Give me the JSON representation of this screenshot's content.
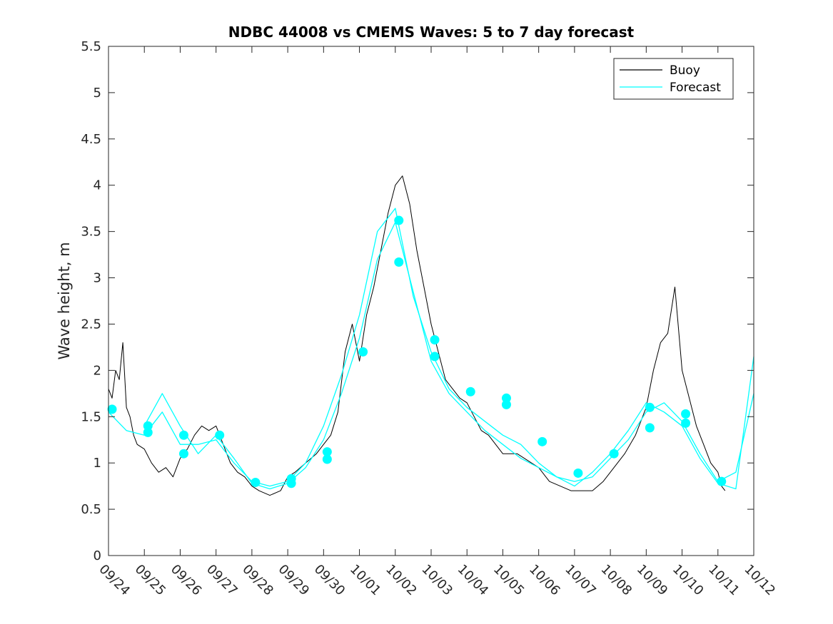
{
  "chart_data": {
    "type": "line",
    "title": "NDBC 44008 vs CMEMS Waves: 5 to 7 day forecast",
    "xlabel": "",
    "ylabel": "Wave height, m",
    "x_unit": "days since 09/24 00:00",
    "xlim": [
      0,
      18
    ],
    "ylim": [
      0,
      5.5
    ],
    "yticks": [
      0,
      0.5,
      1,
      1.5,
      2,
      2.5,
      3,
      3.5,
      4,
      4.5,
      5,
      5.5
    ],
    "ytick_labels": [
      "0",
      "0.5",
      "1",
      "1.5",
      "2",
      "2.5",
      "3",
      "3.5",
      "4",
      "4.5",
      "5",
      "5.5"
    ],
    "xticks": [
      0,
      1,
      2,
      3,
      4,
      5,
      6,
      7,
      8,
      9,
      10,
      11,
      12,
      13,
      14,
      15,
      16,
      17,
      18
    ],
    "xtick_labels": [
      "09/24",
      "09/25",
      "09/26",
      "09/27",
      "09/28",
      "09/29",
      "09/30",
      "10/01",
      "10/02",
      "10/03",
      "10/04",
      "10/05",
      "10/06",
      "10/07",
      "10/08",
      "10/09",
      "10/10",
      "10/11",
      "10/12"
    ],
    "grid": false,
    "legend": {
      "location": "top-right",
      "entries": [
        "Buoy",
        "Forecast"
      ]
    },
    "colors": {
      "buoy": "#000000",
      "forecast": "#00ffff"
    },
    "series": [
      {
        "name": "Buoy",
        "x": [
          0,
          0.1,
          0.2,
          0.3,
          0.4,
          0.5,
          0.6,
          0.7,
          0.8,
          1.0,
          1.2,
          1.4,
          1.6,
          1.8,
          2.0,
          2.2,
          2.4,
          2.6,
          2.8,
          3.0,
          3.2,
          3.4,
          3.6,
          3.8,
          4.0,
          4.2,
          4.5,
          4.8,
          5.0,
          5.2,
          5.5,
          5.8,
          6.0,
          6.2,
          6.4,
          6.6,
          6.8,
          7.0,
          7.2,
          7.4,
          7.6,
          7.8,
          8.0,
          8.2,
          8.4,
          8.6,
          8.8,
          9.0,
          9.2,
          9.4,
          9.6,
          9.8,
          10.0,
          10.2,
          10.4,
          10.6,
          10.8,
          11.0,
          11.2,
          11.4,
          11.6,
          11.8,
          12.0,
          12.3,
          12.6,
          12.9,
          13.2,
          13.5,
          13.8,
          14.1,
          14.4,
          14.7,
          15.0,
          15.2,
          15.4,
          15.6,
          15.8,
          16.0,
          16.2,
          16.4,
          16.6,
          16.8,
          17.0,
          17.1,
          17.2
        ],
        "y": [
          1.8,
          1.7,
          2.0,
          1.9,
          2.3,
          1.6,
          1.5,
          1.3,
          1.2,
          1.15,
          1.0,
          0.9,
          0.95,
          0.85,
          1.05,
          1.15,
          1.3,
          1.4,
          1.35,
          1.4,
          1.2,
          1.0,
          0.9,
          0.85,
          0.75,
          0.7,
          0.65,
          0.7,
          0.85,
          0.9,
          1.0,
          1.1,
          1.2,
          1.3,
          1.55,
          2.2,
          2.5,
          2.1,
          2.6,
          2.9,
          3.3,
          3.7,
          4.0,
          4.1,
          3.8,
          3.3,
          2.9,
          2.5,
          2.2,
          1.9,
          1.8,
          1.7,
          1.65,
          1.5,
          1.35,
          1.3,
          1.2,
          1.1,
          1.1,
          1.1,
          1.05,
          1.0,
          0.95,
          0.8,
          0.75,
          0.7,
          0.7,
          0.7,
          0.8,
          0.95,
          1.1,
          1.3,
          1.6,
          2.0,
          2.3,
          2.4,
          2.9,
          2.0,
          1.7,
          1.4,
          1.2,
          1.0,
          0.9,
          0.75,
          0.7
        ]
      },
      {
        "name": "Forecast",
        "x": [
          0,
          0.5,
          1.0,
          1.5,
          2.0,
          2.5,
          3.0,
          3.5,
          4.0,
          4.5,
          5.0,
          5.5,
          6.0,
          6.5,
          7.0,
          7.5,
          8.0,
          8.5,
          9.0,
          9.5,
          10.0,
          10.5,
          11.0,
          11.5,
          12.0,
          12.5,
          13.0,
          13.5,
          14.0,
          14.5,
          15.0,
          15.5,
          16.0,
          16.5,
          17.0,
          17.5,
          18.0
        ],
        "y": [
          1.55,
          1.35,
          1.3,
          1.55,
          1.2,
          1.2,
          1.25,
          1.0,
          0.8,
          0.75,
          0.8,
          1.0,
          1.4,
          1.95,
          2.6,
          3.5,
          3.75,
          2.8,
          2.2,
          1.8,
          1.6,
          1.45,
          1.3,
          1.2,
          1.0,
          0.85,
          0.8,
          0.85,
          1.05,
          1.25,
          1.55,
          1.65,
          1.45,
          1.1,
          0.8,
          0.9,
          1.75
        ]
      },
      {
        "name": "Forecast",
        "x": [
          1.0,
          1.5,
          2.0,
          2.5,
          3.0,
          3.5,
          4.0,
          4.5,
          5.0,
          5.5,
          6.0,
          6.5,
          7.0,
          7.5,
          8.0,
          8.5,
          9.0,
          9.5,
          10.0,
          10.5,
          11.0,
          11.5,
          12.0,
          12.5,
          13.0,
          13.5,
          14.0,
          14.5,
          15.0,
          15.5,
          16.0,
          16.5,
          17.0,
          17.5,
          18.0
        ],
        "y": [
          1.4,
          1.75,
          1.4,
          1.1,
          1.3,
          1.05,
          0.78,
          0.72,
          0.78,
          0.95,
          1.25,
          1.75,
          2.35,
          3.2,
          3.6,
          2.85,
          2.1,
          1.75,
          1.55,
          1.35,
          1.2,
          1.05,
          0.95,
          0.85,
          0.75,
          0.9,
          1.1,
          1.35,
          1.65,
          1.55,
          1.4,
          1.05,
          0.78,
          0.72,
          2.15
        ]
      }
    ],
    "markers": {
      "name": "Forecast initialization",
      "x": [
        0.1,
        1.1,
        1.1,
        2.1,
        2.1,
        3.1,
        4.1,
        5.1,
        5.1,
        6.1,
        6.1,
        7.1,
        8.1,
        8.1,
        9.1,
        9.1,
        10.1,
        11.1,
        11.1,
        12.1,
        13.1,
        14.1,
        15.1,
        15.1,
        16.1,
        16.1,
        17.1
      ],
      "y": [
        1.58,
        1.4,
        1.33,
        1.3,
        1.1,
        1.3,
        0.79,
        0.83,
        0.78,
        1.12,
        1.04,
        2.2,
        3.62,
        3.17,
        2.33,
        2.15,
        1.77,
        1.7,
        1.63,
        1.23,
        0.89,
        1.1,
        1.6,
        1.38,
        1.53,
        1.43,
        0.8
      ]
    }
  }
}
